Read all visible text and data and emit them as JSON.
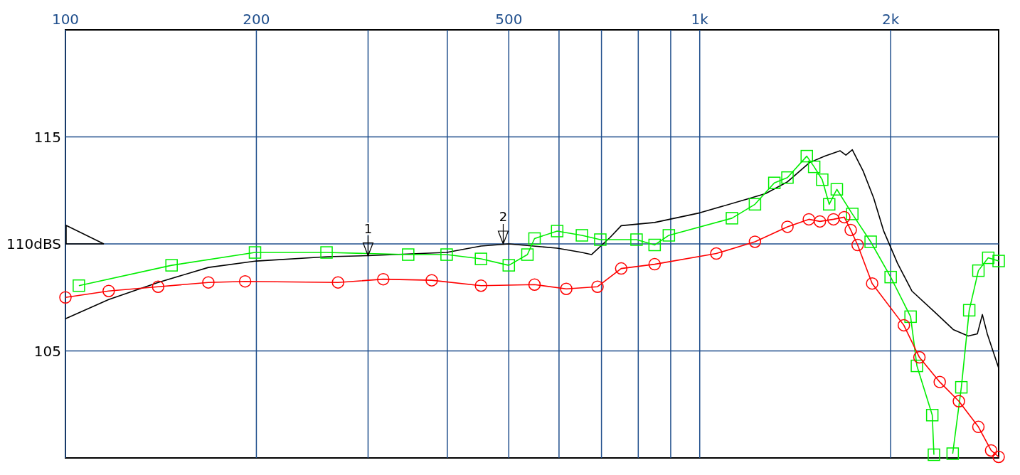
{
  "chart_data": {
    "type": "line",
    "log": "x",
    "grid": true,
    "line_style": "solid",
    "xlim": [
      100,
      2960
    ],
    "ylim": [
      100,
      120
    ],
    "xticks": [
      100,
      200,
      {
        "value": 300,
        "label": null
      },
      {
        "value": 400,
        "label": null
      },
      500,
      {
        "value": 600,
        "label": null
      },
      {
        "value": 700,
        "label": null
      },
      {
        "value": 800,
        "label": null
      },
      {
        "value": 900,
        "label": null
      },
      {
        "value": 1000,
        "label": "1k"
      },
      {
        "value": 2000,
        "label": "2k"
      }
    ],
    "yticks": [
      105,
      {
        "value": 110,
        "label": "110dBS"
      },
      115
    ],
    "annotations": [
      {
        "text": "1",
        "x": 300,
        "y": 109.45
      },
      {
        "text": "2",
        "x": 490,
        "y": 110.0
      }
    ],
    "series": [
      {
        "color": "#000000",
        "marker": "none",
        "x": [
          100,
          117,
          140,
          168,
          200,
          259,
          300,
          399,
          452,
          500,
          596,
          652,
          675,
          722,
          752,
          849,
          1000,
          1190,
          1270,
          1375,
          1490,
          1575,
          1665,
          1700,
          1740,
          1810,
          1880,
          1950,
          2050,
          2160,
          2350,
          2510,
          2650,
          2740,
          2790,
          2840,
          2960
        ],
        "values": [
          106.5,
          107.4,
          108.2,
          108.9,
          109.2,
          109.4,
          109.45,
          109.6,
          109.9,
          110.0,
          109.8,
          109.6,
          109.5,
          110.3,
          110.85,
          111.0,
          111.45,
          112.1,
          112.35,
          112.9,
          113.8,
          114.1,
          114.35,
          114.15,
          114.4,
          113.4,
          112.15,
          110.6,
          109.1,
          107.8,
          106.8,
          106.0,
          105.7,
          105.8,
          106.7,
          105.8,
          104.2
        ]
      },
      {
        "color": "#00ee00",
        "marker": "square",
        "x": [
          105,
          147,
          199,
          258,
          347,
          399,
          452,
          500,
          535,
          549,
          596,
          652,
          697,
          795,
          849,
          894,
          1124,
          1222,
          1311,
          1375,
          1475,
          1515,
          1560,
          1600,
          1645,
          1740,
          1860,
          2000,
          2150,
          2200,
          2326,
          2340,
          2440,
          2505,
          2585,
          2660,
          2750,
          2850,
          2960
        ],
        "values": [
          108.05,
          109.0,
          109.6,
          109.6,
          109.5,
          109.5,
          109.3,
          109.0,
          109.5,
          110.25,
          110.6,
          110.4,
          110.2,
          110.2,
          109.95,
          110.4,
          111.2,
          111.85,
          112.85,
          113.1,
          114.1,
          113.6,
          113.0,
          111.85,
          112.55,
          111.4,
          110.1,
          108.45,
          106.6,
          104.3,
          102.0,
          100.15,
          null,
          100.2,
          103.3,
          106.9,
          108.75,
          109.35,
          109.2
        ]
      },
      {
        "color": "#ff0000",
        "marker": "circle",
        "x": [
          100,
          117,
          140,
          168,
          192,
          269,
          317,
          378,
          452,
          549,
          616,
          690,
          752,
          849,
          1062,
          1222,
          1375,
          1486,
          1547,
          1625,
          1690,
          1730,
          1774,
          1870,
          2098,
          2220,
          2390,
          2562,
          2750,
          2880,
          2960
        ],
        "values": [
          107.5,
          107.8,
          108.0,
          108.2,
          108.25,
          108.2,
          108.35,
          108.3,
          108.05,
          108.1,
          107.9,
          108.0,
          108.85,
          109.05,
          109.55,
          110.1,
          110.8,
          111.15,
          111.05,
          111.15,
          111.25,
          110.65,
          109.95,
          108.15,
          106.2,
          104.7,
          103.55,
          102.65,
          101.45,
          100.35,
          100.05
        ]
      }
    ]
  }
}
